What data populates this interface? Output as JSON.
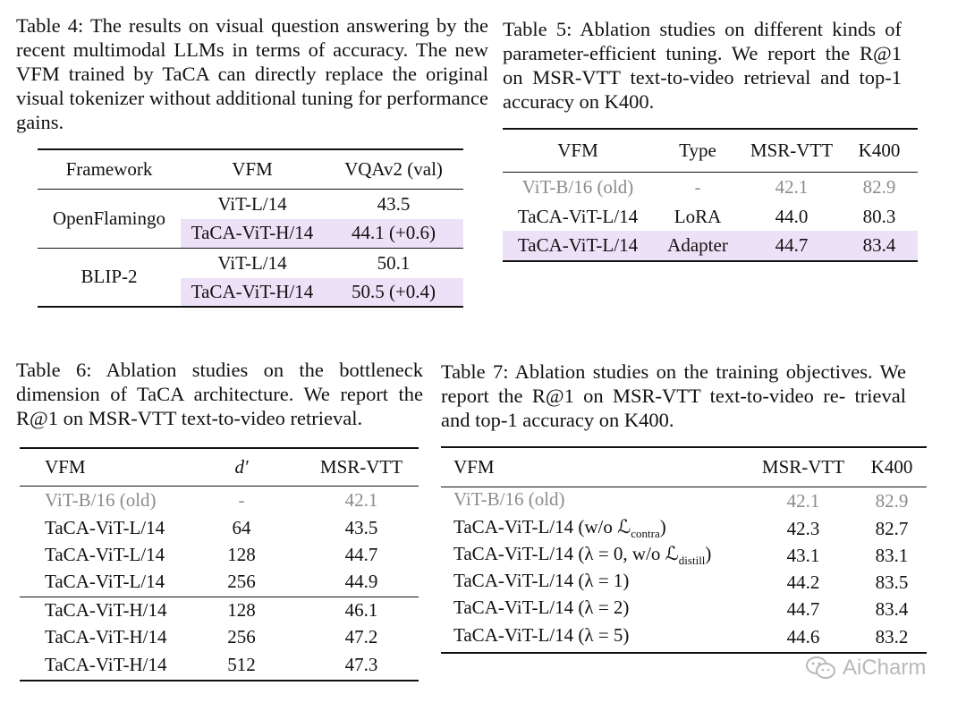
{
  "table4": {
    "caption": "Table 4: The results on visual question answering by the recent multimodal LLMs in terms of accuracy. The new VFM trained by TaCA can directly replace the original visual tokenizer without additional tuning for performance gains.",
    "headers": [
      "Framework",
      "VFM",
      "VQAv2 (val)"
    ],
    "groups": [
      {
        "framework": "OpenFlamingo",
        "rows": [
          [
            "ViT-L/14",
            "43.5"
          ],
          [
            "TaCA-ViT-H/14",
            "44.1 (+0.6)"
          ]
        ]
      },
      {
        "framework": "BLIP-2",
        "rows": [
          [
            "ViT-L/14",
            "50.1"
          ],
          [
            "TaCA-ViT-H/14",
            "50.5 (+0.4)"
          ]
        ]
      }
    ]
  },
  "table5": {
    "caption": "Table 5: Ablation studies on different kinds of parameter-efficient tuning. We report the R@1 on MSR-VTT text-to-video retrieval and top-1 accuracy on K400.",
    "headers": [
      "VFM",
      "Type",
      "MSR-VTT",
      "K400"
    ],
    "rows": [
      [
        "ViT-B/16 (old)",
        "-",
        "42.1",
        "82.9"
      ],
      [
        "TaCA-ViT-L/14",
        "LoRA",
        "44.0",
        "80.3"
      ],
      [
        "TaCA-ViT-L/14",
        "Adapter",
        "44.7",
        "83.4"
      ]
    ]
  },
  "table6": {
    "caption": "Table 6: Ablation studies on the bottleneck dimension of TaCA architecture. We report the R@1 on MSR-VTT text-to-video retrieval.",
    "headers": [
      "VFM",
      "d′",
      "MSR-VTT"
    ],
    "rows": [
      [
        "ViT-B/16 (old)",
        "-",
        "42.1"
      ],
      [
        "TaCA-ViT-L/14",
        "64",
        "43.5"
      ],
      [
        "TaCA-ViT-L/14",
        "128",
        "44.7"
      ],
      [
        "TaCA-ViT-L/14",
        "256",
        "44.9"
      ],
      [
        "TaCA-ViT-H/14",
        "128",
        "46.1"
      ],
      [
        "TaCA-ViT-H/14",
        "256",
        "47.2"
      ],
      [
        "TaCA-ViT-H/14",
        "512",
        "47.3"
      ]
    ]
  },
  "table7": {
    "caption": "Table 7: Ablation studies on the training objectives. We report the R@1 on MSR-VTT text-to-video re- trieval and top-1 accuracy on K400.",
    "headers": [
      "VFM",
      "MSR-VTT",
      "K400"
    ],
    "rows": [
      {
        "pre": "ViT-B/16 (old)",
        "sub": "",
        "post": "",
        "msr": "42.1",
        "k400": "82.9"
      },
      {
        "pre": "TaCA-ViT-L/14 (w/o ℒ",
        "sub": "contra",
        "post": ")",
        "msr": "42.3",
        "k400": "82.7"
      },
      {
        "pre": "TaCA-ViT-L/14 (λ = 0, w/o ℒ",
        "sub": "distill",
        "post": ")",
        "msr": "43.1",
        "k400": "83.1"
      },
      {
        "pre": "TaCA-ViT-L/14 (λ = 1)",
        "sub": "",
        "post": "",
        "msr": "44.2",
        "k400": "83.5"
      },
      {
        "pre": "TaCA-ViT-L/14 (λ = 2)",
        "sub": "",
        "post": "",
        "msr": "44.7",
        "k400": "83.4"
      },
      {
        "pre": "TaCA-ViT-L/14 (λ = 5)",
        "sub": "",
        "post": "",
        "msr": "44.6",
        "k400": "83.2"
      }
    ]
  },
  "watermark": {
    "text": "AiCharm",
    "icon": "wechat-icon"
  }
}
